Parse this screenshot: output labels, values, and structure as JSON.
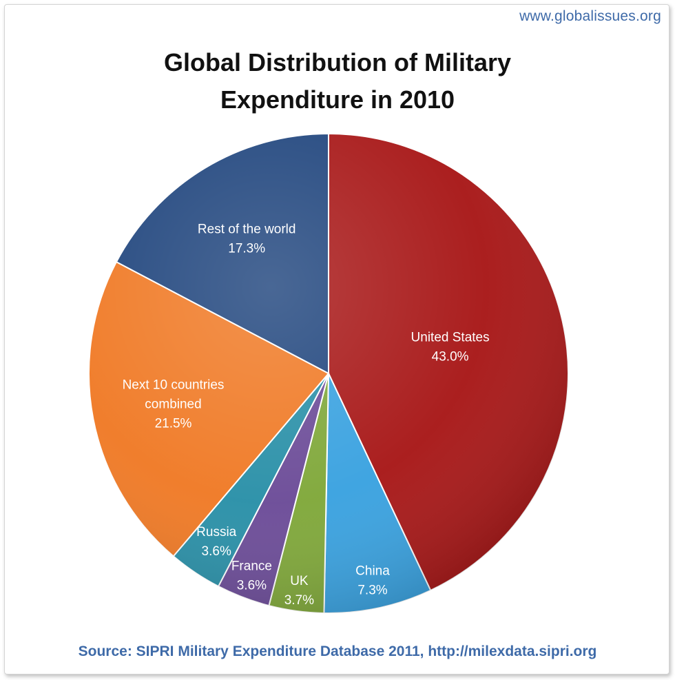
{
  "header": {
    "site_url": "www.globalissues.org",
    "title_line1": "Global Distribution of Military",
    "title_line2": "Expenditure in 2010"
  },
  "footer": {
    "source": "Source: SIPRI Military Expenditure Database 2011, http://milexdata.sipri.org"
  },
  "chart_data": {
    "type": "pie",
    "title": "Global Distribution of Military Expenditure in 2010",
    "unit": "%",
    "start_angle_deg": 0,
    "direction": "clockwise",
    "legend": "none",
    "slices": [
      {
        "label": "United States",
        "lines": [
          "United States",
          "43.0%"
        ],
        "value": 43.0,
        "color": "#a81818",
        "text_color": "#ffffff"
      },
      {
        "label": "China",
        "lines": [
          "China",
          "7.3%"
        ],
        "value": 7.3,
        "color": "#3aa2e0",
        "text_color": "#ffffff"
      },
      {
        "label": "UK",
        "lines": [
          "UK",
          "3.7%"
        ],
        "value": 3.7,
        "color": "#80a83a",
        "text_color": "#ffffff"
      },
      {
        "label": "France",
        "lines": [
          "France",
          "3.6%"
        ],
        "value": 3.6,
        "color": "#6c4c98",
        "text_color": "#ffffff"
      },
      {
        "label": "Russia",
        "lines": [
          "Russia",
          "3.6%"
        ],
        "value": 3.6,
        "color": "#2a90a8",
        "text_color": "#ffffff"
      },
      {
        "label": "Next 10 countries combined",
        "lines": [
          "Next 10 countries",
          "combined",
          "21.5%"
        ],
        "value": 21.5,
        "color": "#f07a26",
        "text_color": "#ffffff"
      },
      {
        "label": "Rest of the world",
        "lines": [
          "Rest of the world",
          "17.3%"
        ],
        "value": 17.3,
        "color": "#21467e",
        "text_color": "#ffffff"
      }
    ]
  }
}
